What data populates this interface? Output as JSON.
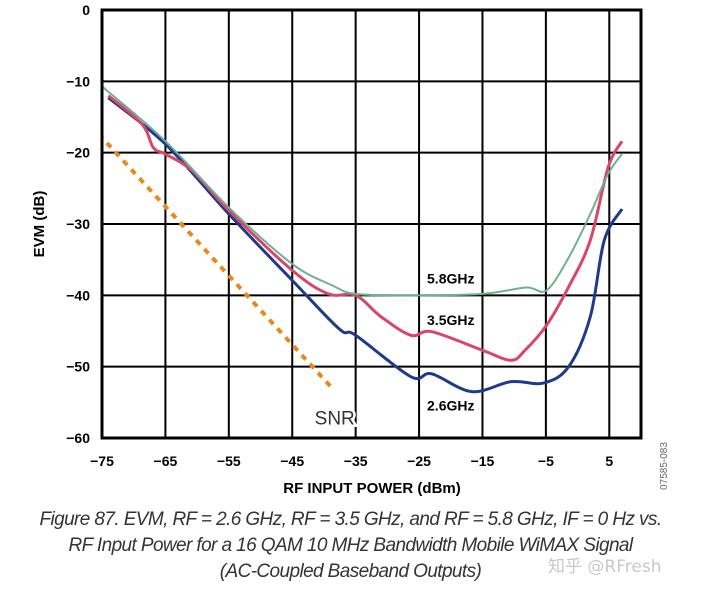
{
  "chart_data": {
    "type": "line",
    "title": "",
    "xlabel": "RF INPUT POWER (dBm)",
    "ylabel": "EVM (dB)",
    "xlim": [
      -75,
      10
    ],
    "ylim": [
      -60,
      0
    ],
    "xticks": [
      -75,
      -65,
      -55,
      -45,
      -35,
      -25,
      -15,
      -5,
      5
    ],
    "xtick_labels": [
      "−75",
      "−65",
      "−55",
      "−45",
      "−35",
      "−25",
      "−15",
      "−5",
      "5"
    ],
    "yticks": [
      0,
      -10,
      -20,
      -30,
      -40,
      -50,
      -60
    ],
    "ytick_labels": [
      "0",
      "−10",
      "−20",
      "−30",
      "−40",
      "−50",
      "−60"
    ],
    "grid": true,
    "series": [
      {
        "name": "2.6GHz",
        "color": "#1f3a8a",
        "label_at": [
          -20,
          -55.3
        ],
        "x": [
          -74,
          -65,
          -55,
          -45,
          -37.6,
          -35,
          -26.3,
          -23,
          -16.7,
          -10.5,
          -5.4,
          -1.4,
          2,
          4.2,
          7
        ],
        "y": [
          -12.3,
          -18.8,
          -28.6,
          -37.9,
          -44.7,
          -45.6,
          -51.4,
          -51,
          -53.5,
          -52.1,
          -52.3,
          -50,
          -43,
          -32.3,
          -27.9
        ]
      },
      {
        "name": "3.5GHz",
        "color": "#d9456b",
        "label_at": [
          -20,
          -43.3
        ],
        "x": [
          -74,
          -68.7,
          -66.9,
          -65,
          -60.8,
          -55,
          -45,
          -39.3,
          -35,
          -31,
          -26.3,
          -23,
          -15,
          -10.5,
          -8.3,
          -4.9,
          -1.4,
          2,
          4.8,
          7
        ],
        "y": [
          -12,
          -16,
          -19.3,
          -20.2,
          -22.5,
          -28.1,
          -36.5,
          -39.8,
          -40,
          -43,
          -45.6,
          -45.1,
          -47.7,
          -49.1,
          -47.7,
          -44.2,
          -38.8,
          -32.3,
          -22.1,
          -18.4
        ]
      },
      {
        "name": "5.8GHz",
        "color": "#6fb08f",
        "label_at": [
          -20,
          -37.5
        ],
        "x": [
          -75,
          -65,
          -55,
          -45,
          -38.7,
          -35,
          -26.3,
          -15,
          -8.1,
          -4.9,
          -1.4,
          2,
          4.8,
          7
        ],
        "y": [
          -10.7,
          -18.4,
          -27.7,
          -35.6,
          -38.6,
          -39.8,
          -40,
          -39.8,
          -38.9,
          -39.3,
          -34.7,
          -28.6,
          -23,
          -20.2
        ]
      },
      {
        "name": "SNR",
        "color": "#e8891c",
        "dashed": true,
        "label_at": [
          -38.3,
          -57.3
        ],
        "x": [
          -75.5,
          -38.4
        ],
        "y": [
          -17.4,
          -53.3
        ]
      }
    ],
    "side_code": "07585-083"
  },
  "caption": {
    "line1": "Figure 87. EVM, RF = 2.6 GHz, RF = 3.5 GHz, and RF = 5.8 GHz, IF = 0 Hz vs.",
    "line2": "RF Input Power for a 16 QAM 10 MHz Bandwidth Mobile WiMAX Signal",
    "line3": "(AC-Coupled Baseband Outputs)"
  },
  "watermark": "知乎 @RFresh"
}
